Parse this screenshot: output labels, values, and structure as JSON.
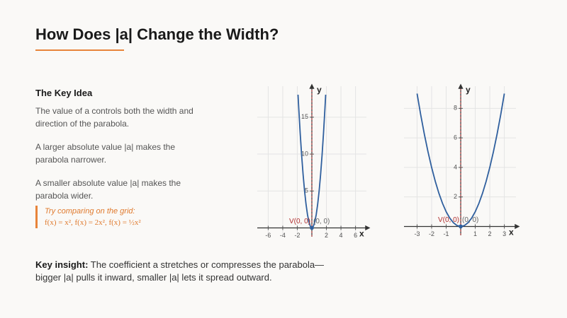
{
  "title": "How Does |a| Change the Width?",
  "key_idea": {
    "heading": "The Key Idea",
    "paragraphs": [
      "The value of a controls both the width and direction of the parabola.",
      "A larger absolute value |a| makes the parabola narrower.",
      "A smaller absolute value |a| makes the parabola wider."
    ]
  },
  "callout": {
    "prompt": "Try comparing on the grid:",
    "formulas": "f(x) = x², f(x) = 2x², f(x) = ½x²"
  },
  "insight": {
    "label": "Key insight:",
    "text": "The coefficient a stretches or compresses the parabola—bigger |a| pulls it inward, smaller |a| lets it spread outward."
  },
  "chart_data": [
    {
      "type": "line",
      "xlabel": "x",
      "ylabel": "y",
      "color": "#2f5f9e",
      "x": [
        -1.9,
        -1.8,
        -1.6,
        -1.4,
        -1.2,
        -1,
        -0.8,
        -0.6,
        -0.4,
        -0.2,
        0,
        0.2,
        0.4,
        0.6,
        0.8,
        1,
        1.2,
        1.4,
        1.6,
        1.8,
        1.9
      ],
      "values": [
        18.05,
        16.2,
        12.8,
        9.8,
        7.2,
        5,
        3.2,
        1.8,
        0.8,
        0.2,
        0,
        0.2,
        0.8,
        1.8,
        3.2,
        5,
        7.2,
        9.8,
        12.8,
        16.2,
        18.05
      ],
      "xlim": [
        -7.5,
        7.5
      ],
      "ylim": [
        -1.2,
        19.2
      ],
      "xticks": [
        -6,
        -4,
        -2,
        2,
        4,
        6
      ],
      "yticks": [
        5,
        10,
        15
      ],
      "grid": true,
      "vertex": {
        "x": 0,
        "y": 0,
        "label": "V(0, 0)",
        "coord_label": "(0, 0)"
      }
    },
    {
      "type": "line",
      "xlabel": "x",
      "ylabel": "y",
      "color": "#2f5f9e",
      "x": [
        -3,
        -2.75,
        -2.5,
        -2.25,
        -2,
        -1.75,
        -1.5,
        -1.25,
        -1,
        -0.75,
        -0.5,
        -0.25,
        0,
        0.25,
        0.5,
        0.75,
        1,
        1.25,
        1.5,
        1.75,
        2,
        2.25,
        2.5,
        2.75,
        3
      ],
      "values": [
        9,
        7.5625,
        6.25,
        5.0625,
        4,
        3.0625,
        2.25,
        1.5625,
        1,
        0.5625,
        0.25,
        0.0625,
        0,
        0.0625,
        0.25,
        0.5625,
        1,
        1.5625,
        2.25,
        3.0625,
        4,
        5.0625,
        6.25,
        7.5625,
        9
      ],
      "xlim": [
        -3.9,
        3.8
      ],
      "ylim": [
        -0.6,
        9.5
      ],
      "xticks": [
        -3,
        -2,
        -1,
        1,
        2,
        3
      ],
      "yticks": [
        2,
        4,
        6,
        8
      ],
      "grid": true,
      "vertex": {
        "x": 0,
        "y": 0,
        "label": "V(0, 0)",
        "coord_label": "(0, 0)"
      }
    }
  ]
}
